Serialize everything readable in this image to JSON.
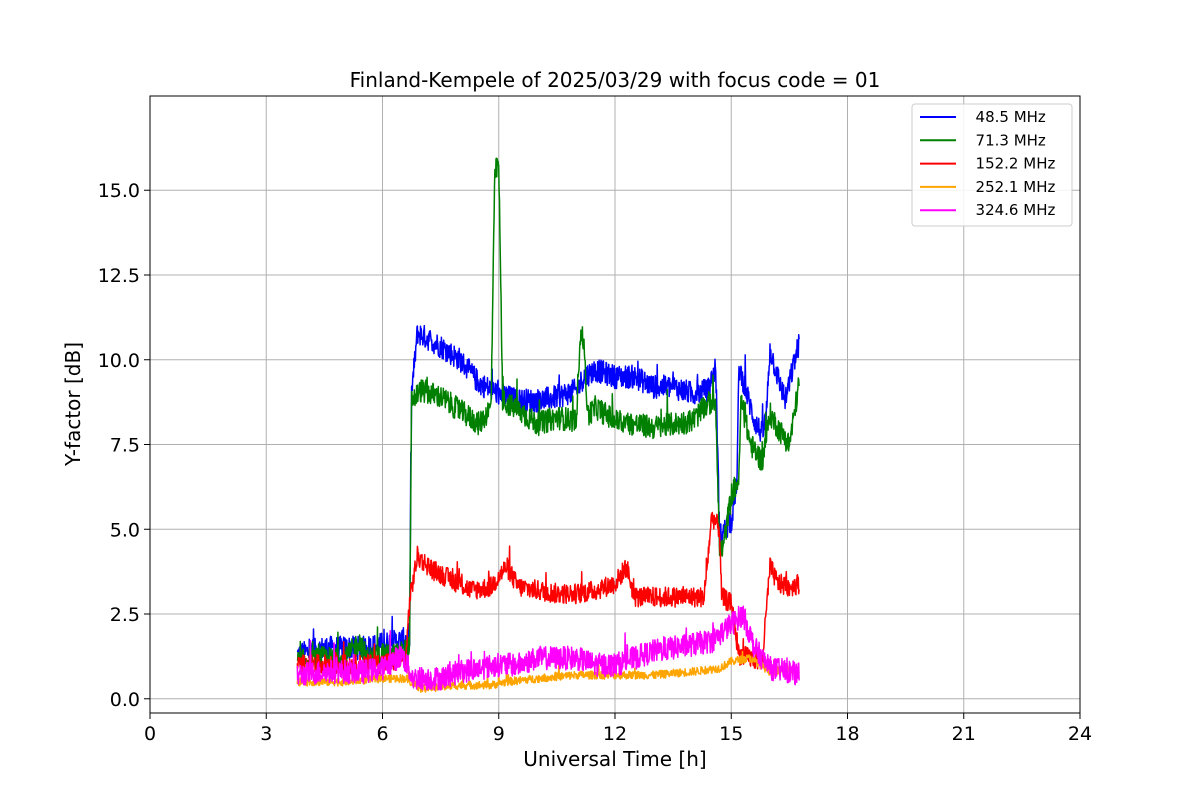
{
  "chart_data": {
    "type": "line",
    "title": "Finland-Kempele of 2025/03/29 with focus code = 01",
    "xlabel": "Universal Time [h]",
    "ylabel": "Y-factor [dB]",
    "xlim": [
      0,
      24
    ],
    "ylim": [
      -0.42,
      17.78
    ],
    "x_ticks": [
      0,
      3,
      6,
      9,
      12,
      15,
      18,
      21,
      24
    ],
    "x_tick_labels": [
      "0",
      "3",
      "6",
      "9",
      "12",
      "15",
      "18",
      "21",
      "24"
    ],
    "y_ticks": [
      0,
      2.5,
      5,
      7.5,
      10,
      12.5,
      15
    ],
    "y_tick_labels": [
      "0.0",
      "2.5",
      "5.0",
      "7.5",
      "10.0",
      "12.5",
      "15.0"
    ],
    "grid": true,
    "legend_position": "top-right",
    "series": [
      {
        "name": "  48.5 MHz",
        "color": "#0000ff",
        "noise": 0.35,
        "points": [
          [
            3.8,
            1.3
          ],
          [
            4.5,
            1.5
          ],
          [
            5.5,
            1.5
          ],
          [
            6.4,
            1.7
          ],
          [
            6.7,
            1.8
          ],
          [
            6.75,
            9.0
          ],
          [
            6.9,
            10.8
          ],
          [
            7.5,
            10.4
          ],
          [
            8.0,
            10.0
          ],
          [
            8.5,
            9.3
          ],
          [
            9.0,
            9.0
          ],
          [
            9.5,
            8.8
          ],
          [
            10.0,
            8.8
          ],
          [
            10.5,
            8.9
          ],
          [
            11.0,
            9.1
          ],
          [
            11.2,
            9.5
          ],
          [
            11.5,
            9.7
          ],
          [
            12.0,
            9.5
          ],
          [
            12.5,
            9.5
          ],
          [
            13.0,
            9.2
          ],
          [
            13.5,
            9.2
          ],
          [
            14.0,
            9.0
          ],
          [
            14.4,
            9.1
          ],
          [
            14.6,
            9.8
          ],
          [
            14.7,
            4.8
          ],
          [
            15.0,
            5.2
          ],
          [
            15.15,
            6.5
          ],
          [
            15.2,
            9.8
          ],
          [
            15.4,
            9.0
          ],
          [
            15.6,
            8.2
          ],
          [
            15.8,
            7.8
          ],
          [
            15.9,
            8.3
          ],
          [
            16.0,
            10.3
          ],
          [
            16.2,
            9.5
          ],
          [
            16.4,
            8.8
          ],
          [
            16.6,
            9.8
          ],
          [
            16.75,
            10.5
          ]
        ]
      },
      {
        "name": "  71.3 MHz",
        "color": "#008000",
        "noise": 0.35,
        "points": [
          [
            3.8,
            1.1
          ],
          [
            4.5,
            1.2
          ],
          [
            5.0,
            1.1
          ],
          [
            5.4,
            1.7
          ],
          [
            5.6,
            1.2
          ],
          [
            6.4,
            1.3
          ],
          [
            6.7,
            1.5
          ],
          [
            6.75,
            8.8
          ],
          [
            7.0,
            9.1
          ],
          [
            7.5,
            8.9
          ],
          [
            8.0,
            8.5
          ],
          [
            8.5,
            8.1
          ],
          [
            8.8,
            8.6
          ],
          [
            8.9,
            15.5
          ],
          [
            9.0,
            15.8
          ],
          [
            9.1,
            8.8
          ],
          [
            9.5,
            8.5
          ],
          [
            10.0,
            8.1
          ],
          [
            10.5,
            8.3
          ],
          [
            11.0,
            8.2
          ],
          [
            11.1,
            10.8
          ],
          [
            11.2,
            10.5
          ],
          [
            11.3,
            8.3
          ],
          [
            11.5,
            8.6
          ],
          [
            12.0,
            8.2
          ],
          [
            12.5,
            8.1
          ],
          [
            13.0,
            8.0
          ],
          [
            13.5,
            8.1
          ],
          [
            14.0,
            8.2
          ],
          [
            14.4,
            8.7
          ],
          [
            14.6,
            8.8
          ],
          [
            14.7,
            4.3
          ],
          [
            14.8,
            4.5
          ],
          [
            15.0,
            6.0
          ],
          [
            15.2,
            6.5
          ],
          [
            15.25,
            8.8
          ],
          [
            15.5,
            7.5
          ],
          [
            15.8,
            7.0
          ],
          [
            16.0,
            8.4
          ],
          [
            16.2,
            8.0
          ],
          [
            16.5,
            7.5
          ],
          [
            16.75,
            9.3
          ]
        ]
      },
      {
        "name": "  152.2 MHz",
        "color": "#ff0000",
        "noise": 0.3,
        "points": [
          [
            3.8,
            1.0
          ],
          [
            4.5,
            1.0
          ],
          [
            5.5,
            1.0
          ],
          [
            6.4,
            1.1
          ],
          [
            6.6,
            1.2
          ],
          [
            6.7,
            2.9
          ],
          [
            6.9,
            4.2
          ],
          [
            7.3,
            3.8
          ],
          [
            7.8,
            3.5
          ],
          [
            8.3,
            3.2
          ],
          [
            8.8,
            3.3
          ],
          [
            9.2,
            3.9
          ],
          [
            9.5,
            3.3
          ],
          [
            10.0,
            3.2
          ],
          [
            10.5,
            3.1
          ],
          [
            11.0,
            3.1
          ],
          [
            11.5,
            3.2
          ],
          [
            12.0,
            3.4
          ],
          [
            12.3,
            3.9
          ],
          [
            12.5,
            3.0
          ],
          [
            13.0,
            3.0
          ],
          [
            13.5,
            3.0
          ],
          [
            14.0,
            3.0
          ],
          [
            14.3,
            3.0
          ],
          [
            14.5,
            5.4
          ],
          [
            14.7,
            5.0
          ],
          [
            14.75,
            3.0
          ],
          [
            15.0,
            2.8
          ],
          [
            15.2,
            1.3
          ],
          [
            15.5,
            1.2
          ],
          [
            15.8,
            1.1
          ],
          [
            16.0,
            3.9
          ],
          [
            16.2,
            3.4
          ],
          [
            16.5,
            3.3
          ],
          [
            16.75,
            3.4
          ]
        ]
      },
      {
        "name": "  252.1 MHz",
        "color": "#ffa500",
        "noise": 0.12,
        "points": [
          [
            3.8,
            0.5
          ],
          [
            5.0,
            0.5
          ],
          [
            6.0,
            0.6
          ],
          [
            6.6,
            0.6
          ],
          [
            7.0,
            0.3
          ],
          [
            8.0,
            0.4
          ],
          [
            8.8,
            0.4
          ],
          [
            9.2,
            0.5
          ],
          [
            10.0,
            0.6
          ],
          [
            11.0,
            0.7
          ],
          [
            12.0,
            0.7
          ],
          [
            13.0,
            0.7
          ],
          [
            14.0,
            0.8
          ],
          [
            14.7,
            0.9
          ],
          [
            15.0,
            1.1
          ],
          [
            15.5,
            1.2
          ],
          [
            16.0,
            0.8
          ],
          [
            16.5,
            0.9
          ],
          [
            16.75,
            0.7
          ]
        ]
      },
      {
        "name": "  324.6 MHz",
        "color": "#ff00ff",
        "noise": 0.35,
        "points": [
          [
            3.8,
            0.7
          ],
          [
            4.5,
            0.8
          ],
          [
            5.5,
            0.8
          ],
          [
            6.0,
            0.9
          ],
          [
            6.5,
            1.3
          ],
          [
            6.8,
            0.6
          ],
          [
            7.5,
            0.6
          ],
          [
            8.0,
            0.8
          ],
          [
            8.5,
            0.9
          ],
          [
            9.0,
            1.0
          ],
          [
            9.5,
            1.0
          ],
          [
            10.0,
            1.2
          ],
          [
            10.5,
            1.2
          ],
          [
            11.0,
            1.2
          ],
          [
            11.5,
            1.0
          ],
          [
            12.0,
            1.0
          ],
          [
            12.5,
            1.2
          ],
          [
            13.0,
            1.4
          ],
          [
            13.5,
            1.5
          ],
          [
            14.0,
            1.6
          ],
          [
            14.5,
            1.7
          ],
          [
            15.0,
            2.2
          ],
          [
            15.3,
            2.5
          ],
          [
            15.6,
            1.5
          ],
          [
            16.0,
            0.9
          ],
          [
            16.5,
            0.8
          ],
          [
            16.75,
            0.7
          ]
        ]
      }
    ]
  }
}
